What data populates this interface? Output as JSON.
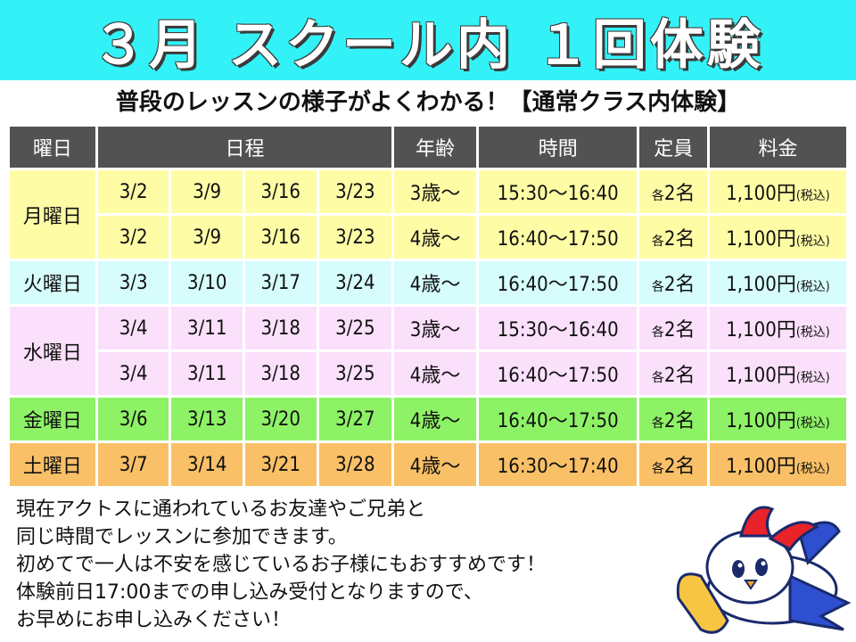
{
  "banner": {
    "title": "３月 スクール内 １回体験"
  },
  "subtitle": "普段のレッスンの様子がよくわかる！【通常クラス内体験】",
  "table": {
    "headers": {
      "day": "曜日",
      "dates": "日程",
      "age": "年齢",
      "time": "時間",
      "capacity": "定員",
      "fee": "料金"
    },
    "days": {
      "mon": "月曜日",
      "tue": "火曜日",
      "wed": "水曜日",
      "fri": "金曜日",
      "sat": "土曜日"
    },
    "rows": [
      {
        "dates": [
          "3/2",
          "3/9",
          "3/16",
          "3/23"
        ],
        "age": "3歳～",
        "time": "15:30～16:40",
        "cap_prefix": "各",
        "cap": "2名",
        "fee": "1,100円",
        "tax": "(税込)"
      },
      {
        "dates": [
          "3/2",
          "3/9",
          "3/16",
          "3/23"
        ],
        "age": "4歳～",
        "time": "16:40～17:50",
        "cap_prefix": "各",
        "cap": "2名",
        "fee": "1,100円",
        "tax": "(税込)"
      },
      {
        "dates": [
          "3/3",
          "3/10",
          "3/17",
          "3/24"
        ],
        "age": "4歳～",
        "time": "16:40～17:50",
        "cap_prefix": "各",
        "cap": "2名",
        "fee": "1,100円",
        "tax": "(税込)"
      },
      {
        "dates": [
          "3/4",
          "3/11",
          "3/18",
          "3/25"
        ],
        "age": "3歳～",
        "time": "15:30～16:40",
        "cap_prefix": "各",
        "cap": "2名",
        "fee": "1,100円",
        "tax": "(税込)"
      },
      {
        "dates": [
          "3/4",
          "3/11",
          "3/18",
          "3/25"
        ],
        "age": "4歳～",
        "time": "16:40～17:50",
        "cap_prefix": "各",
        "cap": "2名",
        "fee": "1,100円",
        "tax": "(税込)"
      },
      {
        "dates": [
          "3/6",
          "3/13",
          "3/20",
          "3/27"
        ],
        "age": "4歳～",
        "time": "16:40～17:50",
        "cap_prefix": "各",
        "cap": "2名",
        "fee": "1,100円",
        "tax": "(税込)"
      },
      {
        "dates": [
          "3/7",
          "3/14",
          "3/21",
          "3/28"
        ],
        "age": "4歳～",
        "time": "16:30～17:40",
        "cap_prefix": "各",
        "cap": "2名",
        "fee": "1,100円",
        "tax": "(税込)"
      }
    ]
  },
  "note": {
    "lines": [
      "現在アクトスに通われているお友達やご兄弟と",
      "同じ時間でレッスンに参加できます。",
      "初めてで一人は不安を感じているお子様にもおすすめです！",
      "体験前日17:00までの申し込み受付となりますので、",
      "お早めにお申し込みください！"
    ]
  },
  "colors": {
    "banner": "#33f2f7",
    "header": "#525252",
    "monday": "#fffca6",
    "tuesday": "#d6fcfc",
    "wednesday": "#fbe0fb",
    "friday": "#8ef266",
    "saturday": "#f9c067"
  },
  "mascot": {
    "icon": "bird-mascot-icon"
  }
}
